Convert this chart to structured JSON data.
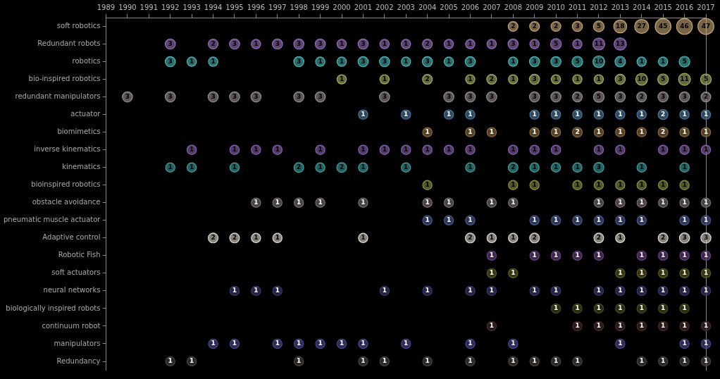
{
  "chart_data": {
    "type": "heatmap",
    "data_labels": true,
    "categories": [
      "1989",
      "1990",
      "1991",
      "1992",
      "1993",
      "1994",
      "1995",
      "1996",
      "1997",
      "1998",
      "1999",
      "2000",
      "2001",
      "2002",
      "2003",
      "2004",
      "2005",
      "2006",
      "2007",
      "2008",
      "2009",
      "2010",
      "2011",
      "2012",
      "2013",
      "2014",
      "2015",
      "2016",
      "2017"
    ],
    "y_categories": [
      "soft robotics",
      "Redundant robots",
      "robotics",
      "bio-inspired robotics",
      "redundant manipulators",
      "actuator",
      "biomimetics",
      "inverse kinematics",
      "kinematics",
      "bioinspired robotics",
      "obstacle avoidance",
      "pneumatic muscle actuator",
      "Adaptive control",
      "Robotic Fish",
      "soft actuators",
      "neural networks",
      "biologically inspired robots",
      "continuum robot",
      "manipulators",
      "Redundancy"
    ],
    "colors": [
      "#c8a878",
      "#9b6fc0",
      "#4fb8b8",
      "#a8b060",
      "#9a9090",
      "#4a7aa0",
      "#8a6a40",
      "#8a60b0",
      "#40a0a0",
      "#8a9040",
      "#7a7070",
      "#4a5a90",
      "#e0dcd0",
      "#6a4080",
      "#5a5a20",
      "#3a3a70",
      "#4a4a20",
      "#4a2a2a",
      "#4a4a90",
      "#4a4440"
    ],
    "cells": [
      [
        null,
        null,
        null,
        null,
        null,
        null,
        null,
        null,
        null,
        null,
        null,
        null,
        null,
        null,
        null,
        null,
        null,
        null,
        null,
        2,
        2,
        2,
        3,
        5,
        18,
        27,
        45,
        46,
        47
      ],
      [
        null,
        null,
        null,
        3,
        null,
        2,
        3,
        1,
        3,
        3,
        3,
        1,
        3,
        1,
        1,
        2,
        1,
        1,
        1,
        3,
        1,
        5,
        1,
        11,
        13,
        null,
        null,
        null,
        null
      ],
      [
        null,
        null,
        null,
        3,
        1,
        1,
        null,
        null,
        null,
        3,
        1,
        1,
        3,
        3,
        1,
        3,
        1,
        3,
        null,
        1,
        3,
        3,
        5,
        10,
        4,
        1,
        1,
        5,
        null
      ],
      [
        null,
        null,
        null,
        null,
        null,
        null,
        null,
        null,
        null,
        null,
        null,
        1,
        null,
        1,
        null,
        2,
        null,
        1,
        2,
        1,
        3,
        1,
        1,
        1,
        3,
        10,
        5,
        11,
        5
      ],
      [
        null,
        3,
        null,
        3,
        null,
        3,
        3,
        3,
        null,
        3,
        3,
        null,
        null,
        3,
        null,
        null,
        3,
        3,
        3,
        null,
        3,
        3,
        2,
        5,
        3,
        2,
        3,
        3,
        2
      ],
      [
        null,
        null,
        null,
        null,
        null,
        null,
        null,
        null,
        null,
        null,
        null,
        null,
        1,
        null,
        1,
        null,
        1,
        1,
        null,
        null,
        1,
        1,
        1,
        1,
        1,
        1,
        2,
        1,
        1
      ],
      [
        null,
        null,
        null,
        null,
        null,
        null,
        null,
        null,
        null,
        null,
        null,
        null,
        null,
        null,
        null,
        1,
        null,
        1,
        1,
        null,
        1,
        1,
        2,
        1,
        1,
        1,
        2,
        1,
        1
      ],
      [
        null,
        null,
        null,
        null,
        1,
        null,
        1,
        1,
        1,
        null,
        1,
        null,
        1,
        1,
        1,
        1,
        1,
        1,
        null,
        1,
        1,
        1,
        null,
        1,
        1,
        null,
        1,
        1,
        1
      ],
      [
        null,
        null,
        null,
        1,
        1,
        null,
        1,
        null,
        null,
        2,
        1,
        2,
        1,
        null,
        1,
        null,
        null,
        1,
        null,
        2,
        1,
        1,
        1,
        3,
        null,
        1,
        null,
        1,
        null
      ],
      [
        null,
        null,
        null,
        null,
        null,
        null,
        null,
        null,
        null,
        null,
        null,
        null,
        null,
        null,
        null,
        1,
        null,
        null,
        null,
        1,
        1,
        null,
        1,
        1,
        1,
        1,
        1,
        1,
        null
      ],
      [
        null,
        null,
        null,
        null,
        null,
        null,
        null,
        1,
        1,
        1,
        1,
        null,
        1,
        null,
        null,
        1,
        1,
        null,
        1,
        1,
        null,
        null,
        null,
        1,
        1,
        1,
        1,
        1,
        1
      ],
      [
        null,
        null,
        null,
        null,
        null,
        null,
        null,
        null,
        null,
        null,
        null,
        null,
        null,
        null,
        null,
        1,
        1,
        1,
        null,
        null,
        1,
        1,
        1,
        1,
        1,
        1,
        null,
        1,
        1
      ],
      [
        null,
        null,
        null,
        null,
        null,
        2,
        2,
        1,
        1,
        null,
        null,
        null,
        1,
        null,
        null,
        null,
        null,
        2,
        1,
        1,
        2,
        null,
        null,
        2,
        1,
        null,
        2,
        3,
        3
      ],
      [
        null,
        null,
        null,
        null,
        null,
        null,
        null,
        null,
        null,
        null,
        null,
        null,
        null,
        null,
        null,
        null,
        null,
        null,
        1,
        null,
        1,
        1,
        1,
        1,
        null,
        1,
        1,
        1,
        1
      ],
      [
        null,
        null,
        null,
        null,
        null,
        null,
        null,
        null,
        null,
        null,
        null,
        null,
        null,
        null,
        null,
        null,
        null,
        null,
        1,
        1,
        null,
        null,
        null,
        null,
        1,
        1,
        1,
        1,
        1
      ],
      [
        null,
        null,
        null,
        null,
        null,
        null,
        1,
        1,
        1,
        null,
        null,
        null,
        null,
        1,
        null,
        1,
        null,
        1,
        1,
        null,
        1,
        1,
        null,
        1,
        1,
        1,
        1,
        1,
        1
      ],
      [
        null,
        null,
        null,
        null,
        null,
        null,
        null,
        null,
        null,
        null,
        null,
        null,
        null,
        null,
        null,
        null,
        null,
        null,
        null,
        null,
        null,
        1,
        1,
        1,
        1,
        1,
        1,
        1,
        null
      ],
      [
        null,
        null,
        null,
        null,
        null,
        null,
        null,
        null,
        null,
        null,
        null,
        null,
        null,
        null,
        null,
        null,
        null,
        null,
        1,
        null,
        null,
        null,
        1,
        1,
        1,
        1,
        1,
        1,
        1
      ],
      [
        null,
        null,
        null,
        null,
        null,
        1,
        1,
        null,
        1,
        1,
        1,
        1,
        1,
        null,
        1,
        null,
        null,
        1,
        null,
        1,
        null,
        null,
        null,
        null,
        1,
        null,
        null,
        1,
        1
      ],
      [
        null,
        null,
        null,
        1,
        1,
        null,
        null,
        null,
        null,
        1,
        null,
        null,
        1,
        1,
        null,
        1,
        null,
        1,
        null,
        1,
        1,
        1,
        1,
        null,
        null,
        1,
        1,
        1,
        1
      ]
    ]
  }
}
